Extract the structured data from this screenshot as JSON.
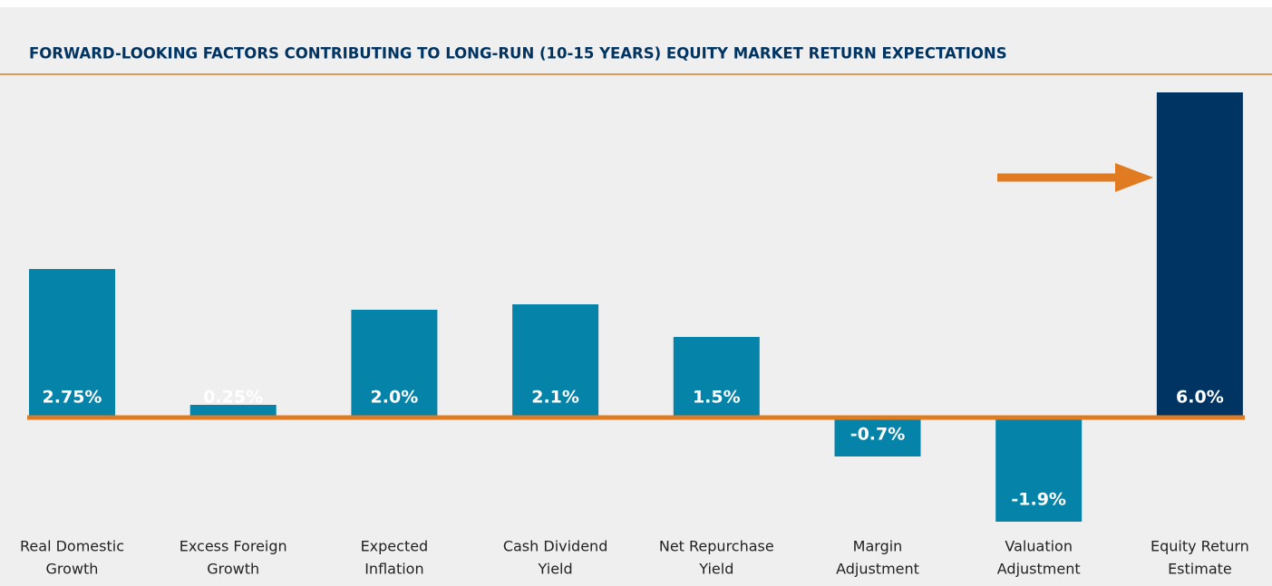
{
  "chart_data": {
    "type": "bar",
    "title": "FORWARD-LOOKING FACTORS CONTRIBUTING TO LONG-RUN (10-15 YEARS) EQUITY MARKET RETURN EXPECTATIONS",
    "categories": [
      [
        "Real Domestic",
        "Growth"
      ],
      [
        "Excess Foreign",
        "Growth"
      ],
      [
        "Expected",
        "Inflation"
      ],
      [
        "Cash Dividend",
        "Yield"
      ],
      [
        "Net Repurchase",
        "Yield"
      ],
      [
        "Margin",
        "Adjustment"
      ],
      [
        "Valuation",
        "Adjustment"
      ],
      [
        "Equity Return",
        "Estimate"
      ]
    ],
    "values": [
      2.75,
      0.25,
      2.0,
      2.1,
      1.5,
      -0.7,
      -1.9,
      6.0
    ],
    "value_labels": [
      "2.75%",
      "0.25%",
      "2.0%",
      "2.1%",
      "1.5%",
      "-0.7%",
      "-1.9%",
      "6.0%"
    ],
    "colors": [
      "#0583a9",
      "#0583a9",
      "#0583a9",
      "#0583a9",
      "#0583a9",
      "#0583a9",
      "#0583a9",
      "#003462"
    ],
    "ylim": [
      -2.3,
      6.2
    ]
  }
}
